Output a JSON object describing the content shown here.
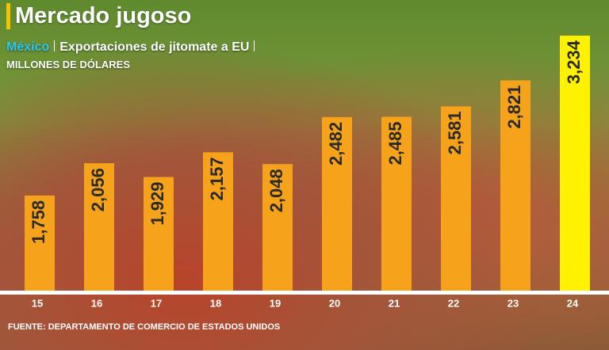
{
  "chart_data": {
    "type": "bar",
    "title": "Mercado jugoso",
    "subtitle_highlight": "México",
    "subtitle": "Exportaciones de jitomate a EU",
    "unit": "MILLONES DE DÓLARES",
    "source": "FUENTE: DEPARTAMENTO DE COMERCIO DE ESTADOS UNIDOS",
    "categories": [
      "15",
      "16",
      "17",
      "18",
      "19",
      "20",
      "21",
      "22",
      "23",
      "24"
    ],
    "values": [
      1758,
      2056,
      1929,
      2157,
      2048,
      2482,
      2485,
      2581,
      2821,
      3234
    ],
    "value_labels": [
      "1,758",
      "2,056",
      "1,929",
      "2,157",
      "2,048",
      "2,482",
      "2,485",
      "2,581",
      "2,821",
      "3,234"
    ],
    "colors": [
      "#f7a21b",
      "#f7a21b",
      "#f7a21b",
      "#f7a21b",
      "#f7a21b",
      "#f7a21b",
      "#f7a21b",
      "#f7a21b",
      "#f7a21b",
      "#fff200"
    ],
    "ylim": [
      880,
      3300
    ]
  }
}
